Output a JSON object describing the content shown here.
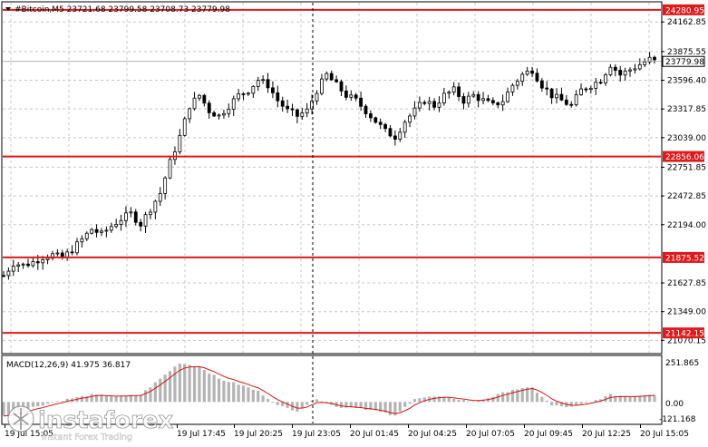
{
  "header": {
    "arrow_icon": "triangle-down-icon",
    "symbol_info": "#Bitcoin,M5  23721.68 23799.58 23708.73 23779.98"
  },
  "price_axis": {
    "ticks": [
      "24162.85",
      "23875.55",
      "23596.40",
      "23317.85",
      "23039.00",
      "22751.85",
      "22472.85",
      "22194.00",
      "21627.85",
      "21349.00",
      "21070.15"
    ],
    "current_price": "23779.98",
    "current_price_value": 23779.98
  },
  "levels": [
    {
      "label": "24280.95",
      "value": 24280.95,
      "color": "#e0191b"
    },
    {
      "label": "22856.06",
      "value": 22856.06,
      "color": "#e0191b"
    },
    {
      "label": "21875.52",
      "value": 21875.52,
      "color": "#e0191b"
    },
    {
      "label": "21142.15",
      "value": 21142.15,
      "color": "#e0191b"
    }
  ],
  "macd": {
    "label": "MACD(12,26,9) 41.975 36.817",
    "ticks": [
      "251.865",
      "0.00",
      "-121.168"
    ]
  },
  "time_axis": {
    "labels": [
      "19 Jul 15:05",
      "19 Jul 17:45",
      "19 Jul 20:25",
      "19 Jul 23:05",
      "20 Jul 01:45",
      "20 Jul 04:25",
      "20 Jul 07:05",
      "20 Jul 09:45",
      "20 Jul 12:25",
      "20 Jul 15:05"
    ]
  },
  "watermark": {
    "brand": "instaforex",
    "tagline": "Instant Forex Trading"
  },
  "colors": {
    "level_line": "#e0191b",
    "candles": "#000000",
    "histogram": "#b4b4b4",
    "signal_line": "#d61414",
    "grid": "#c8c8c8"
  },
  "chart_data": {
    "type": "candlestick",
    "price_range": [
      20950,
      24350
    ],
    "close_path": [
      [
        0,
        21700
      ],
      [
        2,
        21820
      ],
      [
        4,
        21800
      ],
      [
        6,
        21830
      ],
      [
        8,
        21880
      ],
      [
        10,
        21900
      ],
      [
        12,
        21870
      ],
      [
        14,
        21950
      ],
      [
        16,
        22050
      ],
      [
        18,
        22150
      ],
      [
        20,
        22100
      ],
      [
        22,
        22180
      ],
      [
        24,
        22250
      ],
      [
        26,
        22300
      ],
      [
        28,
        22200
      ],
      [
        30,
        22350
      ],
      [
        32,
        22500
      ],
      [
        34,
        22800
      ],
      [
        36,
        23050
      ],
      [
        38,
        23350
      ],
      [
        40,
        23450
      ],
      [
        42,
        23300
      ],
      [
        44,
        23250
      ],
      [
        46,
        23350
      ],
      [
        48,
        23450
      ],
      [
        50,
        23500
      ],
      [
        52,
        23600
      ],
      [
        54,
        23550
      ],
      [
        56,
        23400
      ],
      [
        58,
        23300
      ],
      [
        60,
        23250
      ],
      [
        62,
        23300
      ],
      [
        64,
        23500
      ],
      [
        66,
        23650
      ],
      [
        68,
        23550
      ],
      [
        70,
        23450
      ],
      [
        72,
        23400
      ],
      [
        74,
        23300
      ],
      [
        76,
        23200
      ],
      [
        78,
        23100
      ],
      [
        80,
        23050
      ],
      [
        82,
        23200
      ],
      [
        84,
        23300
      ],
      [
        86,
        23400
      ],
      [
        88,
        23350
      ],
      [
        90,
        23450
      ],
      [
        92,
        23500
      ],
      [
        94,
        23400
      ],
      [
        96,
        23450
      ],
      [
        98,
        23400
      ],
      [
        100,
        23350
      ],
      [
        102,
        23400
      ],
      [
        104,
        23550
      ],
      [
        106,
        23650
      ],
      [
        108,
        23700
      ],
      [
        110,
        23550
      ],
      [
        112,
        23450
      ],
      [
        114,
        23400
      ],
      [
        116,
        23350
      ],
      [
        118,
        23500
      ],
      [
        120,
        23550
      ],
      [
        122,
        23600
      ],
      [
        124,
        23750
      ],
      [
        126,
        23650
      ],
      [
        128,
        23700
      ],
      [
        130,
        23750
      ],
      [
        132,
        23800
      ],
      [
        133,
        23780
      ]
    ],
    "macd_close_path": [
      [
        0,
        -80
      ],
      [
        6,
        -30
      ],
      [
        12,
        10
      ],
      [
        18,
        40
      ],
      [
        24,
        30
      ],
      [
        28,
        40
      ],
      [
        32,
        130
      ],
      [
        36,
        220
      ],
      [
        40,
        200
      ],
      [
        44,
        130
      ],
      [
        48,
        100
      ],
      [
        52,
        60
      ],
      [
        56,
        -20
      ],
      [
        60,
        -50
      ],
      [
        64,
        20
      ],
      [
        68,
        -30
      ],
      [
        72,
        -30
      ],
      [
        76,
        -50
      ],
      [
        80,
        -80
      ],
      [
        84,
        20
      ],
      [
        88,
        30
      ],
      [
        92,
        20
      ],
      [
        96,
        0
      ],
      [
        100,
        30
      ],
      [
        104,
        70
      ],
      [
        108,
        80
      ],
      [
        112,
        -20
      ],
      [
        116,
        -30
      ],
      [
        120,
        0
      ],
      [
        124,
        40
      ],
      [
        128,
        30
      ],
      [
        132,
        42
      ]
    ],
    "macd_range": [
      -121.168,
      251.865
    ],
    "bars": 134
  }
}
